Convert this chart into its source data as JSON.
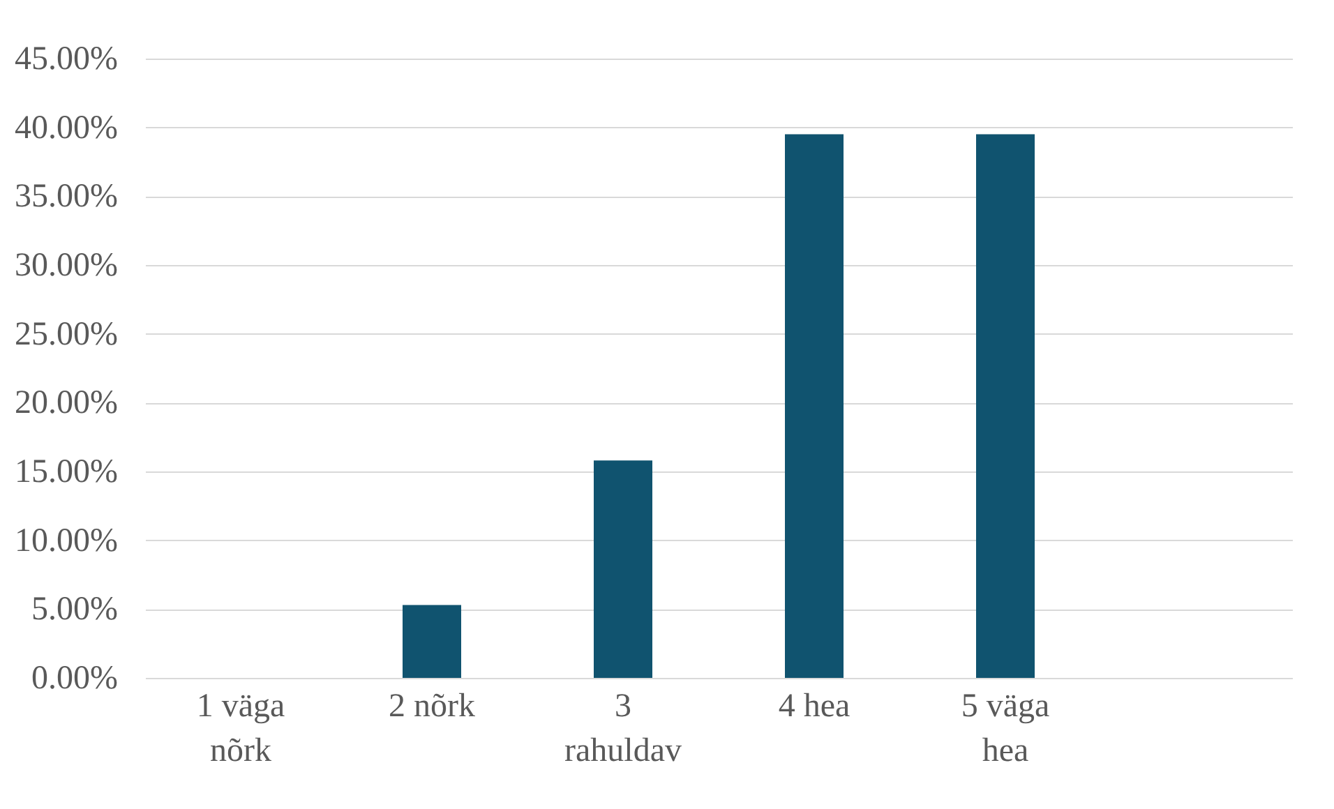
{
  "chart_data": {
    "type": "bar",
    "categories": [
      "1 väga nõrk",
      "2 nõrk",
      "3 rahuldav",
      "4 hea",
      "5 väga hea",
      null
    ],
    "values": [
      0,
      5.3,
      15.8,
      39.5,
      39.5,
      null
    ],
    "color": "#10536f",
    "ylim": [
      0,
      45
    ],
    "yticks": [
      {
        "value": 0,
        "label": "0.00%"
      },
      {
        "value": 5,
        "label": "5.00%"
      },
      {
        "value": 10,
        "label": "10.00%"
      },
      {
        "value": 15,
        "label": "15.00%"
      },
      {
        "value": 20,
        "label": "20.00%"
      },
      {
        "value": 25,
        "label": "25.00%"
      },
      {
        "value": 30,
        "label": "30.00%"
      },
      {
        "value": 35,
        "label": "35.00%"
      },
      {
        "value": 40,
        "label": "40.00%"
      },
      {
        "value": 45,
        "label": "45.00%"
      }
    ],
    "grid": "y"
  }
}
